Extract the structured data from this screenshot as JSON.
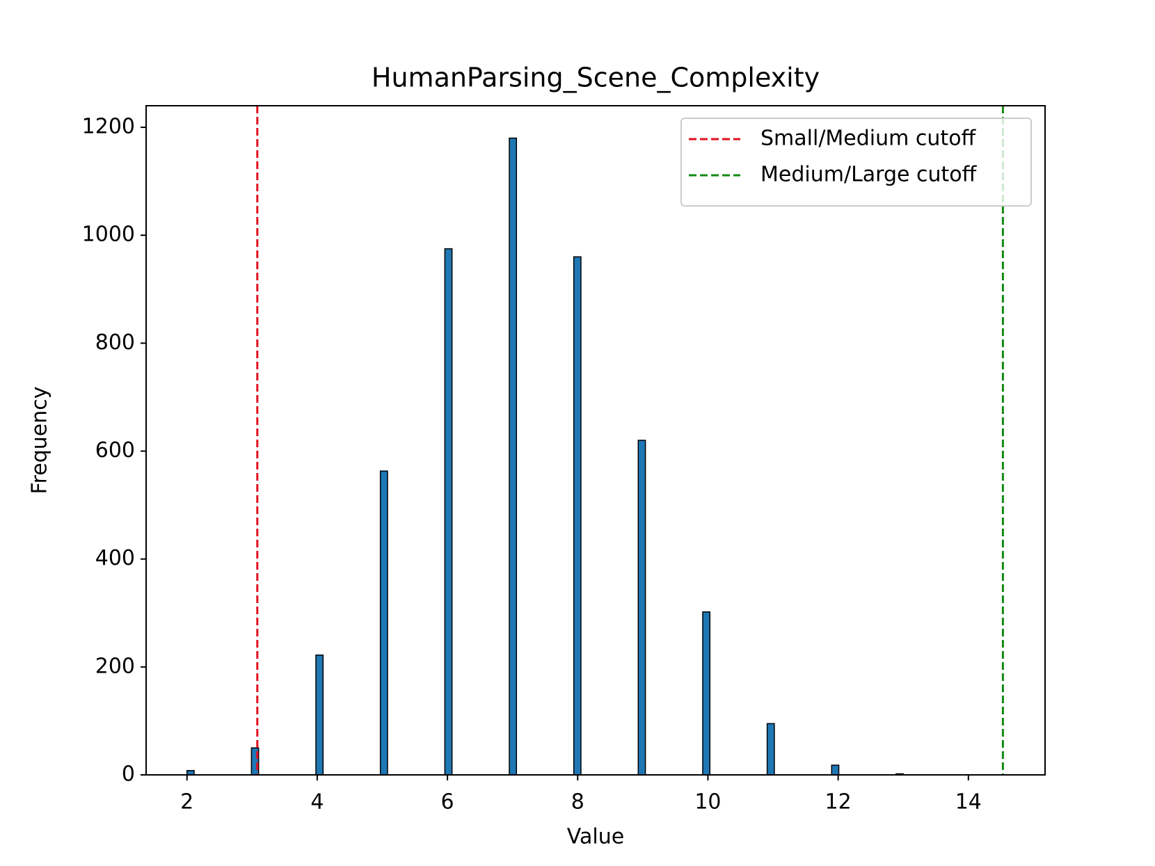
{
  "chart_data": {
    "type": "histogram",
    "title": "HumanParsing_Scene_Complexity",
    "x_label": "Value",
    "y_label": "Frequency",
    "bins": [
      2,
      2.11,
      2.22,
      2.33,
      2.44,
      2.55,
      2.66,
      2.77,
      2.88,
      2.99,
      3.1,
      3.21,
      3.32,
      3.43,
      3.54,
      3.65,
      3.76,
      3.87,
      3.98,
      4.09,
      4.2,
      4.31,
      4.42,
      4.53,
      4.64,
      4.75,
      4.86,
      4.97,
      5.08,
      5.19,
      5.3,
      5.41,
      5.52,
      5.63,
      5.74,
      5.85,
      5.96,
      6.07,
      6.18,
      6.29,
      6.4,
      6.51,
      6.62,
      6.73,
      6.84,
      6.95,
      7.06,
      7.17,
      7.28,
      7.39,
      7.5,
      7.61,
      7.72,
      7.83,
      7.94,
      8.05,
      8.16,
      8.27,
      8.38,
      8.49,
      8.6,
      8.71,
      8.82,
      8.93,
      9.04,
      9.15,
      9.26,
      9.37,
      9.48,
      9.59,
      9.7,
      9.81,
      9.92,
      10.03,
      10.14,
      10.25,
      10.36,
      10.47,
      10.58,
      10.69,
      10.8,
      10.91,
      11.02,
      11.13,
      11.24,
      11.35,
      11.46,
      11.57,
      11.68,
      11.79,
      11.9,
      12.01,
      12.12,
      12.23,
      12.34,
      12.45,
      12.56,
      12.67,
      12.78,
      12.89,
      13
    ],
    "values": [
      8,
      0,
      0,
      0,
      0,
      0,
      0,
      0,
      0,
      50,
      0,
      0,
      0,
      0,
      0,
      0,
      0,
      0,
      222,
      0,
      0,
      0,
      0,
      0,
      0,
      0,
      0,
      563,
      0,
      0,
      0,
      0,
      0,
      0,
      0,
      0,
      975,
      0,
      0,
      0,
      0,
      0,
      0,
      0,
      0,
      1180,
      0,
      0,
      0,
      0,
      0,
      0,
      0,
      0,
      960,
      0,
      0,
      0,
      0,
      0,
      0,
      0,
      0,
      620,
      0,
      0,
      0,
      0,
      0,
      0,
      0,
      0,
      302,
      0,
      0,
      0,
      0,
      0,
      0,
      0,
      0,
      95,
      0,
      0,
      0,
      0,
      0,
      0,
      0,
      0,
      18,
      0,
      0,
      0,
      0,
      0,
      0,
      0,
      0,
      2
    ],
    "color": "#1f77b4",
    "edgecolor": "#000000",
    "lines": [
      {
        "name": "Small/Medium cutoff",
        "x": 3.08,
        "color": "#e0101e"
      },
      {
        "name": "Medium/Large cutoff",
        "x": 14.53,
        "color": "#138a13"
      }
    ],
    "xlim": [
      1.3725,
      15.1775
    ],
    "xticks": [
      2,
      4,
      6,
      8,
      10,
      12,
      14
    ],
    "ylim": [
      0,
      1240
    ],
    "yticks": [
      0,
      200,
      400,
      600,
      800,
      1000,
      1200
    ],
    "legend": "upper right"
  }
}
